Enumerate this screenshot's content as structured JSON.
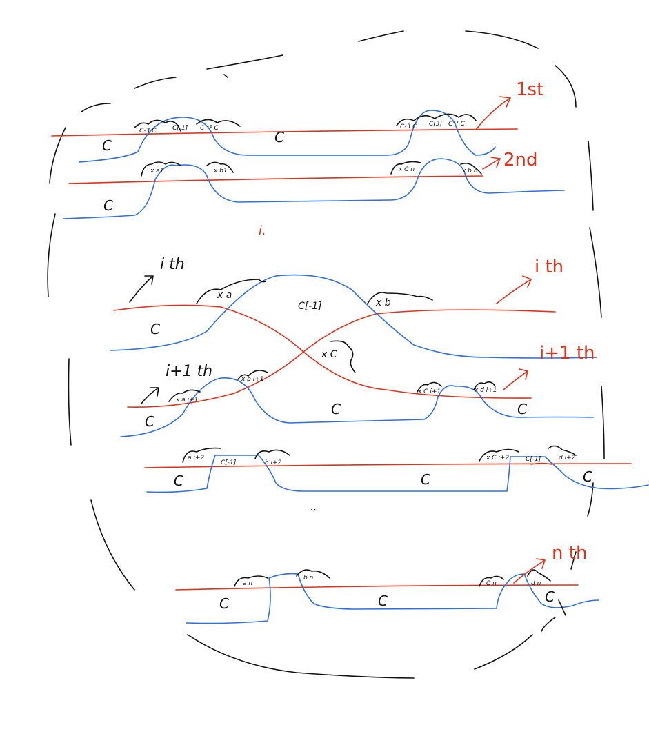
{
  "labels": {
    "first": "1st",
    "second": "2nd",
    "ith_left": "i th",
    "ith_right": "i th",
    "i1th_left": "i+1 th",
    "i1th_right": "i+1 th",
    "nth": "n th",
    "dots1": "i.",
    "dots2": ".,"
  },
  "row1": {
    "c_left": "C",
    "c_mid": "C",
    "b1": "C-3 C",
    "b2": "C[-1]",
    "b3": "C ⁻¹ C",
    "b4": "C-3 C",
    "b5": "C[3]",
    "b6": "C⁻³ C"
  },
  "row2": {
    "c_left": "C",
    "b1": "x a1",
    "b2": "x b1",
    "b3": "x C n",
    "b4": "x b n"
  },
  "ith": {
    "c_left": "C",
    "c_mid": "C[-1]",
    "xa": "x a",
    "xb": "x b",
    "xc": "x C"
  },
  "i1th": {
    "c_left": "C",
    "c_mid": "C",
    "c_right": "C",
    "b1": "x a i+1",
    "b2": "x b i+1",
    "b3": "x C i+1",
    "b4": "x d i+1"
  },
  "row5": {
    "c_left": "C",
    "c_mid": "C",
    "c_right": "C",
    "b1": "a i+2",
    "b2": "C[-1]",
    "b3": "b i+2",
    "b4": "x C i+2",
    "b5": "C[-1]",
    "b6": "d i+2"
  },
  "nth": {
    "c_left": "C",
    "c_mid": "C",
    "c_right": "C",
    "b1": "a n",
    "b2": "b n",
    "b3": "C n",
    "b4": "d n"
  },
  "colors": {
    "red": "#e0311a",
    "blue": "#2f6fe3",
    "black": "#111111"
  }
}
